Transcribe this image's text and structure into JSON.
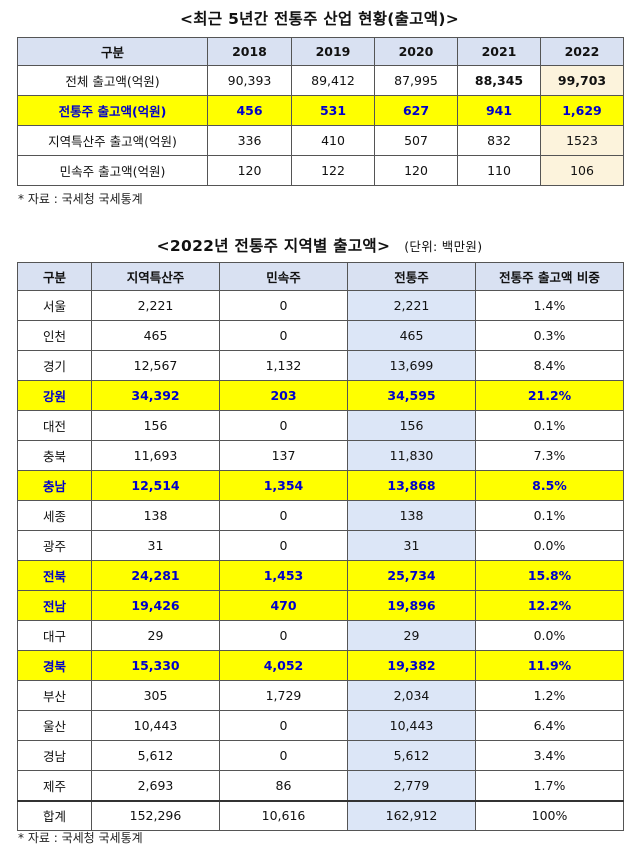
{
  "t1": {
    "title": "<최근 5년간 전통주 산업 현황(출고액)>",
    "headers": [
      "구분",
      "2018",
      "2019",
      "2020",
      "2021",
      "2022"
    ],
    "rows": [
      [
        "전체 출고액(억원)",
        "90,393",
        "89,412",
        "87,995",
        "88,345",
        "99,703"
      ],
      [
        "전통주 출고액(억원)",
        "456",
        "531",
        "627",
        "941",
        "1,629"
      ],
      [
        "지역특산주 출고액(억원)",
        "336",
        "410",
        "507",
        "832",
        "1523"
      ],
      [
        "민속주 출고액(억원)",
        "120",
        "122",
        "120",
        "110",
        "106"
      ]
    ],
    "source": "* 자료 : 국세청 국세통계"
  },
  "t2": {
    "title": "<2022년 전통주 지역별 출고액>",
    "unit": "(단위: 백만원)",
    "headers": [
      "구분",
      "지역특산주",
      "민속주",
      "전통주",
      "전통주 출고액 비중"
    ],
    "rows": [
      [
        "서울",
        "2,221",
        "0",
        "2,221",
        "1.4%"
      ],
      [
        "인천",
        "465",
        "0",
        "465",
        "0.3%"
      ],
      [
        "경기",
        "12,567",
        "1,132",
        "13,699",
        "8.4%"
      ],
      [
        "강원",
        "34,392",
        "203",
        "34,595",
        "21.2%"
      ],
      [
        "대전",
        "156",
        "0",
        "156",
        "0.1%"
      ],
      [
        "충북",
        "11,693",
        "137",
        "11,830",
        "7.3%"
      ],
      [
        "충남",
        "12,514",
        "1,354",
        "13,868",
        "8.5%"
      ],
      [
        "세종",
        "138",
        "0",
        "138",
        "0.1%"
      ],
      [
        "광주",
        "31",
        "0",
        "31",
        "0.0%"
      ],
      [
        "전북",
        "24,281",
        "1,453",
        "25,734",
        "15.8%"
      ],
      [
        "전남",
        "19,426",
        "470",
        "19,896",
        "12.2%"
      ],
      [
        "대구",
        "29",
        "0",
        "29",
        "0.0%"
      ],
      [
        "경북",
        "15,330",
        "4,052",
        "19,382",
        "11.9%"
      ],
      [
        "부산",
        "305",
        "1,729",
        "2,034",
        "1.2%"
      ],
      [
        "울산",
        "10,443",
        "0",
        "10,443",
        "6.4%"
      ],
      [
        "경남",
        "5,612",
        "0",
        "5,612",
        "3.4%"
      ],
      [
        "제주",
        "2,693",
        "86",
        "2,779",
        "1.7%"
      ],
      [
        "합계",
        "152,296",
        "10,616",
        "162,912",
        "100%"
      ]
    ],
    "source": "* 자료 : 국세청 국세통계"
  }
}
